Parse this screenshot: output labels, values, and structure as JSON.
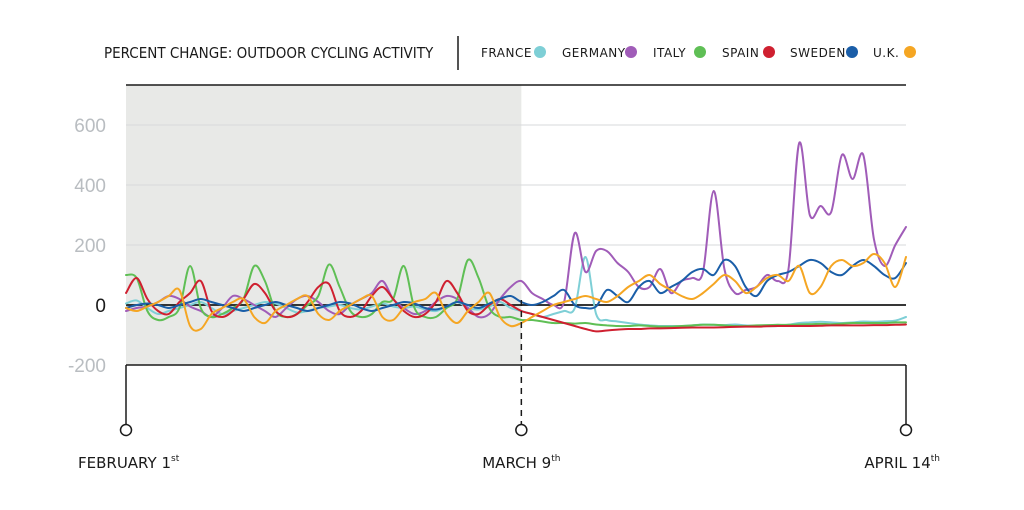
{
  "chart_data": {
    "type": "line",
    "title": "PERCENT CHANGE: OUTDOOR CYCLING ACTIVITY",
    "ylim": [
      -200,
      700
    ],
    "y_ticks": [
      600,
      400,
      200,
      0,
      -200
    ],
    "y_tick_labels": [
      "600",
      "400",
      "200",
      "0",
      "-200"
    ],
    "grid": "horizontal",
    "legend_placement": "top",
    "shaded_period": {
      "start_day": 0,
      "end_day": 37,
      "color": "#e8e9e7"
    },
    "date_markers": [
      {
        "day": 0,
        "label": "FEBRUARY 1",
        "suffix": "st"
      },
      {
        "day": 37,
        "label": "MARCH 9",
        "suffix": "th"
      },
      {
        "day": 73,
        "label": "APRIL 14",
        "suffix": "th"
      }
    ],
    "series": [
      {
        "name": "FRANCE",
        "color": "#7ecfd6",
        "values": [
          5,
          15,
          -10,
          -30,
          -20,
          -10,
          0,
          10,
          -10,
          -30,
          -20,
          -10,
          0,
          10,
          5,
          -10,
          -25,
          -20,
          -10,
          -5,
          0,
          -10,
          -15,
          -5,
          5,
          -5,
          -10,
          -5,
          -15,
          -20,
          -5,
          10,
          -10,
          -15,
          -5,
          10,
          -10,
          -20,
          -30,
          -40,
          -30,
          -20,
          -10,
          160,
          -30,
          -50,
          -55,
          -60,
          -65,
          -68,
          -70,
          -70,
          -70,
          -68,
          -65,
          -66,
          -67,
          -65,
          -68,
          -69,
          -70,
          -70,
          -66,
          -60,
          -58,
          -56,
          -58,
          -60,
          -58,
          -55,
          -56,
          -54,
          -52,
          -40
        ]
      },
      {
        "name": "GERMANY",
        "color": "#a05cb8",
        "values": [
          -20,
          -10,
          -5,
          10,
          30,
          20,
          -5,
          -20,
          -40,
          -10,
          30,
          20,
          0,
          -20,
          -40,
          -10,
          20,
          30,
          10,
          -20,
          -30,
          0,
          20,
          40,
          80,
          20,
          -10,
          -30,
          -20,
          10,
          30,
          20,
          -10,
          -40,
          -30,
          20,
          60,
          80,
          40,
          20,
          0,
          10,
          240,
          110,
          180,
          180,
          140,
          110,
          60,
          60,
          120,
          40,
          80,
          90,
          110,
          380,
          120,
          40,
          50,
          60,
          100,
          80,
          120,
          540,
          300,
          330,
          310,
          500,
          420,
          500,
          220,
          130,
          200,
          260
        ]
      },
      {
        "name": "ITALY",
        "color": "#5fbf55",
        "values": [
          100,
          90,
          -20,
          -50,
          -40,
          -10,
          130,
          -10,
          -40,
          -30,
          -10,
          20,
          130,
          80,
          -20,
          -40,
          -30,
          0,
          30,
          135,
          60,
          -20,
          -40,
          -30,
          10,
          20,
          130,
          -10,
          -40,
          -40,
          -10,
          20,
          150,
          90,
          -10,
          -40,
          -40,
          -50,
          -50,
          -55,
          -60,
          -60,
          -62,
          -60,
          -65,
          -68,
          -70,
          -70,
          -68,
          -70,
          -72,
          -72,
          -70,
          -68,
          -66,
          -66,
          -68,
          -70,
          -70,
          -68,
          -67,
          -66,
          -66,
          -65,
          -64,
          -63,
          -64,
          -62,
          -60,
          -60,
          -60,
          -60,
          -58,
          -58
        ]
      },
      {
        "name": "SPAIN",
        "color": "#cf2030",
        "values": [
          40,
          90,
          20,
          -20,
          -30,
          10,
          40,
          80,
          -20,
          -40,
          -20,
          20,
          70,
          40,
          -20,
          -40,
          -30,
          10,
          60,
          70,
          -20,
          -40,
          -20,
          30,
          60,
          20,
          -20,
          -40,
          -30,
          10,
          80,
          40,
          -20,
          -30,
          0,
          20,
          0,
          -20,
          -30,
          -40,
          -50,
          -60,
          -70,
          -80,
          -88,
          -85,
          -82,
          -80,
          -80,
          -78,
          -78,
          -77,
          -76,
          -75,
          -75,
          -75,
          -74,
          -73,
          -72,
          -72,
          -71,
          -70,
          -70,
          -70,
          -70,
          -69,
          -68,
          -68,
          -68,
          -68,
          -67,
          -67,
          -66,
          -65
        ]
      },
      {
        "name": "SWEDEN",
        "color": "#1a5ea8",
        "values": [
          -10,
          0,
          5,
          0,
          -10,
          0,
          10,
          20,
          10,
          0,
          -10,
          -20,
          -10,
          0,
          10,
          0,
          -10,
          -20,
          -10,
          0,
          10,
          5,
          -10,
          -20,
          -10,
          0,
          10,
          5,
          -10,
          -15,
          -5,
          10,
          0,
          -10,
          5,
          20,
          30,
          10,
          0,
          10,
          30,
          50,
          0,
          -10,
          -5,
          50,
          30,
          10,
          60,
          80,
          40,
          60,
          80,
          110,
          120,
          100,
          150,
          130,
          60,
          30,
          80,
          100,
          110,
          130,
          150,
          140,
          110,
          100,
          130,
          150,
          130,
          100,
          90,
          140
        ]
      },
      {
        "name": "U.K.",
        "color": "#f5a623",
        "values": [
          -10,
          -20,
          -5,
          10,
          30,
          50,
          -70,
          -80,
          -30,
          -10,
          10,
          20,
          -40,
          -60,
          -20,
          0,
          20,
          30,
          -30,
          -50,
          -20,
          0,
          20,
          30,
          -40,
          -50,
          -10,
          10,
          20,
          40,
          -30,
          -60,
          -20,
          10,
          40,
          -40,
          -70,
          -60,
          -40,
          -20,
          0,
          10,
          20,
          30,
          20,
          10,
          30,
          60,
          80,
          100,
          70,
          50,
          30,
          20,
          40,
          70,
          100,
          80,
          40,
          60,
          90,
          100,
          80,
          130,
          40,
          60,
          130,
          150,
          130,
          140,
          170,
          140,
          60,
          160
        ]
      }
    ]
  }
}
